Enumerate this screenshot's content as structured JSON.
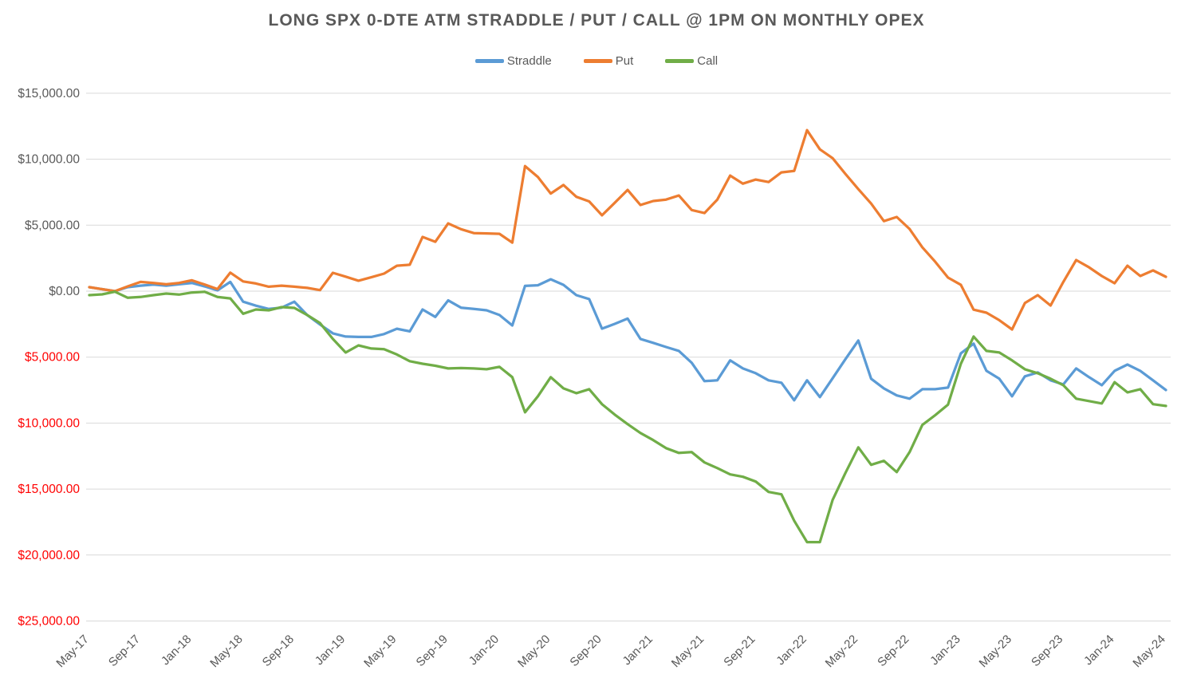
{
  "title": "LONG SPX 0-DTE ATM STRADDLE / PUT / CALL @ 1PM ON MONTHLY OPEX",
  "colors": {
    "straddle": "#5B9BD5",
    "put": "#ED7D31",
    "call": "#70AD47",
    "gridline": "#D9D9D9",
    "axis_label": "#595959",
    "negative_label": "#FF0000",
    "title_text": "#595959",
    "background": "#FFFFFF"
  },
  "chart_data": {
    "type": "line",
    "title": "LONG SPX 0-DTE ATM STRADDLE / PUT / CALL @ 1PM ON MONTHLY OPEX",
    "xlabel": "",
    "ylabel": "",
    "grid": "horizontal",
    "legend_position": "top",
    "y_axis": {
      "min": -25000,
      "max": 15000,
      "step": 5000,
      "tick_labels": [
        "$15,000.00",
        "$10,000.00",
        "$5,000.00",
        "$0.00",
        "$5,000.00",
        "$10,000.00",
        "$15,000.00",
        "$20,000.00",
        "$25,000.00"
      ],
      "number_format": "$#,##0.00 with negatives shown in red without minus sign"
    },
    "x_tick_every": 4,
    "x": [
      "May-17",
      "Jun-17",
      "Jul-17",
      "Aug-17",
      "Sep-17",
      "Oct-17",
      "Nov-17",
      "Dec-17",
      "Jan-18",
      "Feb-18",
      "Mar-18",
      "Apr-18",
      "May-18",
      "Jun-18",
      "Jul-18",
      "Aug-18",
      "Sep-18",
      "Oct-18",
      "Nov-18",
      "Dec-18",
      "Jan-19",
      "Feb-19",
      "Mar-19",
      "Apr-19",
      "May-19",
      "Jun-19",
      "Jul-19",
      "Aug-19",
      "Sep-19",
      "Oct-19",
      "Nov-19",
      "Dec-19",
      "Jan-20",
      "Feb-20",
      "Mar-20",
      "Apr-20",
      "May-20",
      "Jun-20",
      "Jul-20",
      "Aug-20",
      "Sep-20",
      "Oct-20",
      "Nov-20",
      "Dec-20",
      "Jan-21",
      "Feb-21",
      "Mar-21",
      "Apr-21",
      "May-21",
      "Jun-21",
      "Jul-21",
      "Aug-21",
      "Sep-21",
      "Oct-21",
      "Nov-21",
      "Dec-21",
      "Jan-22",
      "Feb-22",
      "Mar-22",
      "Apr-22",
      "May-22",
      "Jun-22",
      "Jul-22",
      "Aug-22",
      "Sep-22",
      "Oct-22",
      "Nov-22",
      "Dec-22",
      "Jan-23",
      "Feb-23",
      "Mar-23",
      "Apr-23",
      "May-23",
      "Jun-23",
      "Jul-23",
      "Aug-23",
      "Sep-23",
      "Oct-23",
      "Nov-23",
      "Dec-23",
      "Jan-24",
      "Feb-24",
      "Mar-24",
      "Apr-24",
      "May-24"
    ],
    "series": [
      {
        "name": "Straddle",
        "color": "#5B9BD5",
        "values": [
          300,
          150,
          0,
          300,
          420,
          500,
          420,
          520,
          620,
          360,
          60,
          700,
          -800,
          -1100,
          -1350,
          -1250,
          -800,
          -1810,
          -2530,
          -3200,
          -3440,
          -3470,
          -3470,
          -3250,
          -2850,
          -3050,
          -1390,
          -1950,
          -700,
          -1250,
          -1350,
          -1450,
          -1810,
          -2600,
          400,
          450,
          900,
          480,
          -300,
          -600,
          -2840,
          -2480,
          -2080,
          -3620,
          -3920,
          -4230,
          -4530,
          -5430,
          -6820,
          -6760,
          -5250,
          -5860,
          -6220,
          -6760,
          -6940,
          -8270,
          -6760,
          -8030,
          -6600,
          -5150,
          -3740,
          -6640,
          -7370,
          -7900,
          -8150,
          -7430,
          -7430,
          -7310,
          -4710,
          -3980,
          -6040,
          -6640,
          -7970,
          -6460,
          -6160,
          -6760,
          -7070,
          -5860,
          -6520,
          -7130,
          -6040,
          -5560,
          -6040,
          -6760,
          -7490
        ]
      },
      {
        "name": "Put",
        "color": "#ED7D31",
        "values": [
          300,
          150,
          0,
          360,
          700,
          620,
          520,
          620,
          825,
          500,
          160,
          1400,
          740,
          580,
          340,
          420,
          340,
          250,
          80,
          1390,
          1100,
          790,
          1050,
          1330,
          1930,
          2000,
          4110,
          3740,
          5130,
          4700,
          4400,
          4380,
          4350,
          3680,
          9480,
          8650,
          7400,
          8050,
          7150,
          6800,
          5750,
          6700,
          7670,
          6530,
          6830,
          6940,
          7250,
          6150,
          5920,
          6940,
          8760,
          8150,
          8460,
          8270,
          9000,
          9120,
          12200,
          10750,
          10080,
          8880,
          7730,
          6640,
          5310,
          5620,
          4710,
          3320,
          2230,
          1030,
          480,
          -1400,
          -1630,
          -2200,
          -2900,
          -900,
          -300,
          -1090,
          700,
          2360,
          1810,
          1150,
          600,
          1930,
          1150,
          1570,
          1090
        ]
      },
      {
        "name": "Call",
        "color": "#70AD47",
        "values": [
          -300,
          -240,
          -40,
          -500,
          -440,
          -300,
          -180,
          -260,
          -100,
          -50,
          -440,
          -550,
          -1710,
          -1390,
          -1450,
          -1210,
          -1270,
          -1810,
          -2420,
          -3620,
          -4650,
          -4110,
          -4350,
          -4400,
          -4800,
          -5310,
          -5500,
          -5650,
          -5860,
          -5830,
          -5860,
          -5920,
          -5740,
          -6520,
          -9180,
          -7970,
          -6520,
          -7370,
          -7730,
          -7430,
          -8570,
          -9360,
          -10080,
          -10750,
          -11290,
          -11900,
          -12260,
          -12200,
          -12980,
          -13410,
          -13890,
          -14070,
          -14430,
          -15220,
          -15400,
          -17400,
          -19020,
          -19020,
          -15820,
          -13770,
          -11840,
          -13160,
          -12860,
          -13710,
          -12200,
          -10140,
          -9400,
          -8600,
          -5500,
          -3440,
          -4530,
          -4650,
          -5250,
          -5920,
          -6220,
          -6640,
          -7130,
          -8150,
          -8330,
          -8510,
          -6900,
          -7670,
          -7430,
          -8570,
          -8700
        ]
      }
    ]
  }
}
